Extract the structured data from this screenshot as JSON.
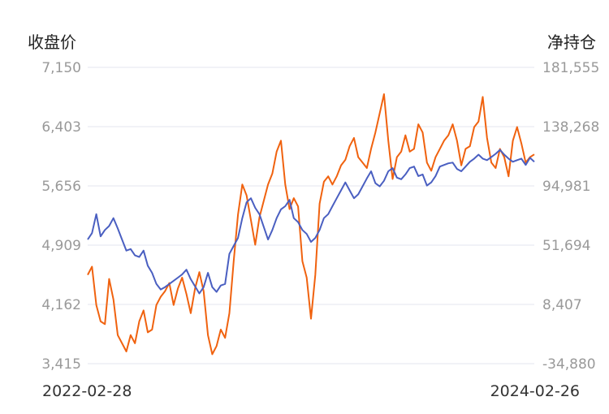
{
  "chart_data": {
    "type": "line",
    "left_axis_title": "收盘价",
    "right_axis_title": "净持仓",
    "left_ticks": [
      "7,150",
      "6,403",
      "5,656",
      "4,909",
      "4,162",
      "3,415"
    ],
    "right_ticks": [
      "181,555",
      "138,268",
      "94,981",
      "51,694",
      "8,407",
      "-34,880"
    ],
    "left_ylim": [
      3415,
      7150
    ],
    "right_ylim": [
      -34880,
      181555
    ],
    "x_start_label": "2022-02-28",
    "x_end_label": "2024-02-26",
    "grid": true,
    "series": [
      {
        "axis": "left",
        "color": "#4a5fc1",
        "x": [
          "2022-02-28",
          "2022-03-07",
          "2022-03-14",
          "2022-03-21",
          "2022-03-28",
          "2022-04-04",
          "2022-04-11",
          "2022-04-18",
          "2022-04-25",
          "2022-05-02",
          "2022-05-09",
          "2022-05-16",
          "2022-05-23",
          "2022-05-30",
          "2022-06-06",
          "2022-06-13",
          "2022-06-20",
          "2022-06-27",
          "2022-07-04",
          "2022-07-11",
          "2022-07-18",
          "2022-07-25",
          "2022-08-01",
          "2022-08-08",
          "2022-08-15",
          "2022-08-22",
          "2022-08-29",
          "2022-09-05",
          "2022-09-12",
          "2022-09-19",
          "2022-09-26",
          "2022-10-03",
          "2022-10-10",
          "2022-10-17",
          "2022-10-24",
          "2022-10-31",
          "2022-11-07",
          "2022-11-14",
          "2022-11-21",
          "2022-11-28",
          "2022-12-05",
          "2022-12-12",
          "2022-12-19",
          "2022-12-26",
          "2023-01-02",
          "2023-01-09",
          "2023-01-16",
          "2023-01-23",
          "2023-01-30",
          "2023-02-06",
          "2023-02-13",
          "2023-02-20",
          "2023-02-27",
          "2023-03-06",
          "2023-03-13",
          "2023-03-20",
          "2023-03-27",
          "2023-04-03",
          "2023-04-10",
          "2023-04-17",
          "2023-04-24",
          "2023-05-01",
          "2023-05-08",
          "2023-05-15",
          "2023-05-22",
          "2023-05-29",
          "2023-06-05",
          "2023-06-12",
          "2023-06-19",
          "2023-06-26",
          "2023-07-03",
          "2023-07-10",
          "2023-07-17",
          "2023-07-24",
          "2023-07-31",
          "2023-08-07",
          "2023-08-14",
          "2023-08-21",
          "2023-08-28",
          "2023-09-04",
          "2023-09-11",
          "2023-09-18",
          "2023-09-25",
          "2023-10-02",
          "2023-10-09",
          "2023-10-16",
          "2023-10-23",
          "2023-10-30",
          "2023-11-06",
          "2023-11-13",
          "2023-11-20",
          "2023-11-27",
          "2023-12-04",
          "2023-12-11",
          "2023-12-18",
          "2023-12-25",
          "2024-01-01",
          "2024-01-08",
          "2024-01-15",
          "2024-01-22",
          "2024-01-29",
          "2024-02-05",
          "2024-02-12",
          "2024-02-19",
          "2024-02-26"
        ],
        "values": [
          4980,
          5060,
          5300,
          5020,
          5100,
          5150,
          5250,
          5120,
          4980,
          4840,
          4860,
          4780,
          4760,
          4840,
          4650,
          4560,
          4420,
          4350,
          4380,
          4420,
          4460,
          4500,
          4540,
          4600,
          4480,
          4390,
          4300,
          4380,
          4560,
          4380,
          4320,
          4400,
          4420,
          4800,
          4900,
          5000,
          5250,
          5450,
          5500,
          5380,
          5300,
          5140,
          4980,
          5100,
          5250,
          5360,
          5400,
          5480,
          5250,
          5200,
          5100,
          5050,
          4950,
          5000,
          5100,
          5250,
          5300,
          5400,
          5500,
          5600,
          5700,
          5600,
          5500,
          5550,
          5650,
          5750,
          5840,
          5690,
          5650,
          5720,
          5840,
          5880,
          5760,
          5740,
          5800,
          5880,
          5900,
          5780,
          5800,
          5660,
          5700,
          5780,
          5900,
          5920,
          5940,
          5950,
          5870,
          5840,
          5900,
          5960,
          6000,
          6050,
          6000,
          5980,
          6020,
          6060,
          6110,
          6050,
          6000,
          5960,
          5980,
          6000,
          5920,
          6010,
          5960
        ],
        "note_values_approx": true
      },
      {
        "axis": "right",
        "color": "#f0620f",
        "x": [
          "2022-02-28",
          "2022-03-07",
          "2022-03-14",
          "2022-03-21",
          "2022-03-28",
          "2022-04-04",
          "2022-04-11",
          "2022-04-18",
          "2022-04-25",
          "2022-05-02",
          "2022-05-09",
          "2022-05-16",
          "2022-05-23",
          "2022-05-30",
          "2022-06-06",
          "2022-06-13",
          "2022-06-20",
          "2022-06-27",
          "2022-07-04",
          "2022-07-11",
          "2022-07-18",
          "2022-07-25",
          "2022-08-01",
          "2022-08-08",
          "2022-08-15",
          "2022-08-22",
          "2022-08-29",
          "2022-09-05",
          "2022-09-12",
          "2022-09-19",
          "2022-09-26",
          "2022-10-03",
          "2022-10-10",
          "2022-10-17",
          "2022-10-24",
          "2022-10-31",
          "2022-11-07",
          "2022-11-14",
          "2022-11-21",
          "2022-11-28",
          "2022-12-05",
          "2022-12-12",
          "2022-12-19",
          "2022-12-26",
          "2023-01-02",
          "2023-01-09",
          "2023-01-16",
          "2023-01-23",
          "2023-01-30",
          "2023-02-06",
          "2023-02-13",
          "2023-02-20",
          "2023-02-27",
          "2023-03-06",
          "2023-03-13",
          "2023-03-20",
          "2023-03-27",
          "2023-04-03",
          "2023-04-10",
          "2023-04-17",
          "2023-04-24",
          "2023-05-01",
          "2023-05-08",
          "2023-05-15",
          "2023-05-22",
          "2023-05-29",
          "2023-06-05",
          "2023-06-12",
          "2023-06-19",
          "2023-06-26",
          "2023-07-03",
          "2023-07-10",
          "2023-07-17",
          "2023-07-24",
          "2023-07-31",
          "2023-08-07",
          "2023-08-14",
          "2023-08-21",
          "2023-08-28",
          "2023-09-04",
          "2023-09-11",
          "2023-09-18",
          "2023-09-25",
          "2023-10-02",
          "2023-10-09",
          "2023-10-16",
          "2023-10-23",
          "2023-10-30",
          "2023-11-06",
          "2023-11-13",
          "2023-11-20",
          "2023-11-27",
          "2023-12-04",
          "2023-12-11",
          "2023-12-18",
          "2023-12-25",
          "2024-01-01",
          "2024-01-08",
          "2024-01-15",
          "2024-01-22",
          "2024-01-29",
          "2024-02-05",
          "2024-02-12",
          "2024-02-19",
          "2024-02-26"
        ],
        "values": [
          30000,
          36000,
          8000,
          -4000,
          -6000,
          27000,
          12000,
          -14000,
          -20000,
          -26000,
          -14000,
          -20000,
          -4000,
          4000,
          -12000,
          -10000,
          8000,
          14000,
          18000,
          24000,
          8000,
          20000,
          28000,
          16000,
          2000,
          20000,
          32000,
          18000,
          -14000,
          -28000,
          -22000,
          -10000,
          -16000,
          2000,
          40000,
          74000,
          96000,
          88000,
          70000,
          52000,
          72000,
          84000,
          96000,
          104000,
          120000,
          128000,
          96000,
          78000,
          86000,
          80000,
          40000,
          28000,
          -2000,
          30000,
          82000,
          98000,
          102000,
          96000,
          102000,
          110000,
          114000,
          124000,
          130000,
          116000,
          112000,
          108000,
          122000,
          134000,
          148000,
          162000,
          128000,
          100000,
          116000,
          120000,
          132000,
          120000,
          122000,
          140000,
          134000,
          112000,
          106000,
          116000,
          122000,
          128000,
          132000,
          140000,
          128000,
          110000,
          122000,
          124000,
          138000,
          142000,
          160000,
          130000,
          112000,
          108000,
          122000,
          116000,
          102000,
          128000,
          138000,
          126000,
          112000,
          116000,
          118000
        ],
        "note_values_approx": true
      }
    ]
  }
}
